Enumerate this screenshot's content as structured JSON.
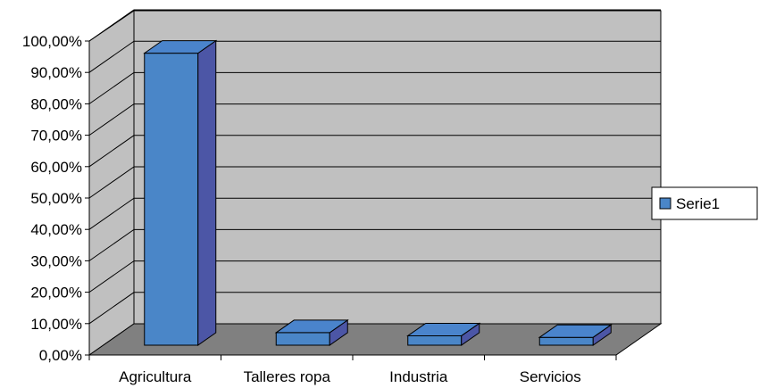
{
  "chart_data": {
    "type": "bar",
    "style": "3d-column",
    "categories": [
      "Agricultura",
      "Talleres ropa",
      "Industria",
      "Servicios"
    ],
    "series": [
      {
        "name": "Serie1",
        "values": [
          0.93,
          0.04,
          0.03,
          0.025
        ],
        "color": "#4a86c8"
      }
    ],
    "yticks": [
      "0,00%",
      "10,00%",
      "20,00%",
      "30,00%",
      "40,00%",
      "50,00%",
      "60,00%",
      "70,00%",
      "80,00%",
      "90,00%",
      "100,00%"
    ],
    "ylim": [
      0,
      1
    ],
    "grid": true,
    "legend": "right",
    "colors": {
      "wall": "#c0c0c0",
      "floor": "#808080",
      "bar_front": "#4a86c8",
      "bar_side": "#4c56a6",
      "bar_top": "#4a84cc"
    }
  }
}
